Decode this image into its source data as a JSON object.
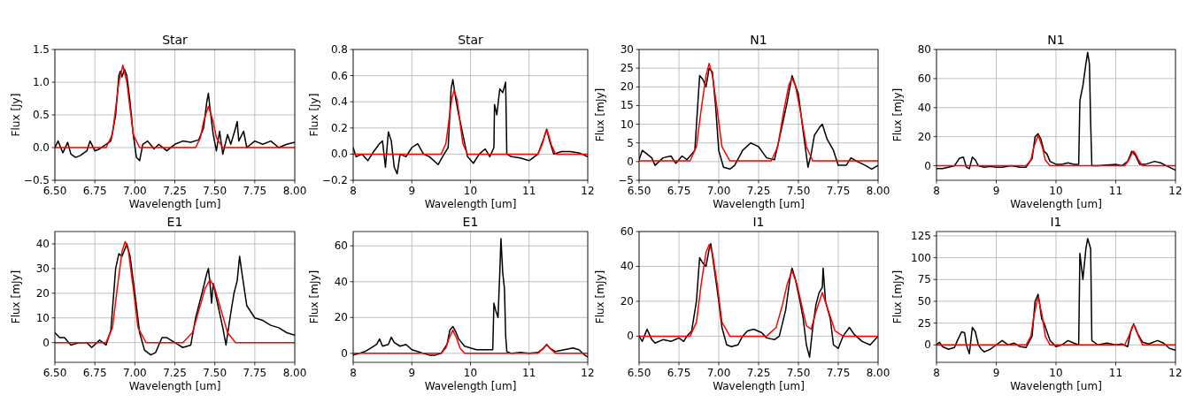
{
  "chart_data": [
    {
      "type": "line",
      "title": "Star",
      "xlabel": "Wavelength [um]",
      "ylabel": "Flux [Jy]",
      "grid": true,
      "xlim": [
        6.5,
        8
      ],
      "xticks": [
        {
          "value": 6.5,
          "label": "6.50"
        },
        {
          "value": 6.75,
          "label": "6.75"
        },
        {
          "value": 7,
          "label": "7.00"
        },
        {
          "value": 7.25,
          "label": "7.25"
        },
        {
          "value": 7.5,
          "label": "7.50"
        },
        {
          "value": 7.75,
          "label": "7.75"
        },
        {
          "value": 8,
          "label": "8.00"
        }
      ],
      "ylim": [
        -0.5,
        1.5
      ],
      "yticks": [
        {
          "value": -0.5,
          "label": "−0.5"
        },
        {
          "value": 0,
          "label": "0.0"
        },
        {
          "value": 0.5,
          "label": "0.5"
        },
        {
          "value": 1,
          "label": "1.0"
        },
        {
          "value": 1.5,
          "label": "1.5"
        }
      ],
      "series": [
        {
          "color": "#000000",
          "x": [
            6.5,
            6.52,
            6.55,
            6.58,
            6.6,
            6.63,
            6.66,
            6.7,
            6.72,
            6.75,
            6.78,
            6.82,
            6.85,
            6.88,
            6.9,
            6.91,
            6.92,
            6.935,
            6.95,
            6.97,
            6.99,
            7.01,
            7.03,
            7.05,
            7.08,
            7.12,
            7.15,
            7.2,
            7.25,
            7.3,
            7.35,
            7.4,
            7.43,
            7.45,
            7.46,
            7.47,
            7.49,
            7.51,
            7.53,
            7.55,
            7.58,
            7.6,
            7.63,
            7.64,
            7.65,
            7.68,
            7.7,
            7.75,
            7.8,
            7.85,
            7.9,
            7.95,
            8.0
          ],
          "values": [
            0.0,
            0.1,
            -0.08,
            0.08,
            -0.1,
            -0.15,
            -0.12,
            -0.05,
            0.1,
            -0.05,
            -0.02,
            0.05,
            0.1,
            0.5,
            1.1,
            1.17,
            1.08,
            1.2,
            1.1,
            0.7,
            0.2,
            -0.15,
            -0.2,
            0.05,
            0.1,
            -0.02,
            0.05,
            -0.05,
            0.05,
            0.1,
            0.08,
            0.12,
            0.3,
            0.7,
            0.83,
            0.6,
            0.2,
            -0.05,
            0.25,
            -0.1,
            0.2,
            0.05,
            0.3,
            0.4,
            0.1,
            0.25,
            0.0,
            0.1,
            0.05,
            0.1,
            0.0,
            0.05,
            0.08
          ]
        },
        {
          "color": "#ff0000",
          "x": [
            6.5,
            6.82,
            6.86,
            6.88,
            6.9,
            6.925,
            6.95,
            6.97,
            6.99,
            7.03,
            7.38,
            7.41,
            7.43,
            7.46,
            7.49,
            7.51,
            7.55,
            8.0
          ],
          "values": [
            0,
            0,
            0.2,
            0.6,
            1.0,
            1.26,
            1.0,
            0.6,
            0.2,
            0,
            0,
            0.15,
            0.4,
            0.63,
            0.4,
            0.15,
            0,
            0
          ]
        }
      ]
    },
    {
      "type": "line",
      "title": "Star",
      "xlabel": "Wavelength [um]",
      "ylabel": "Flux [Jy]",
      "grid": true,
      "xlim": [
        8,
        12
      ],
      "xticks": [
        8,
        9,
        10,
        11,
        12
      ],
      "ylim": [
        -0.2,
        0.8
      ],
      "yticks": [
        {
          "value": -0.2,
          "label": "−0.2"
        },
        {
          "value": 0,
          "label": "0.0"
        },
        {
          "value": 0.2,
          "label": "0.2"
        },
        {
          "value": 0.4,
          "label": "0.4"
        },
        {
          "value": 0.6,
          "label": "0.6"
        },
        {
          "value": 0.8,
          "label": "0.8"
        }
      ],
      "series": [
        {
          "color": "#000000",
          "x": [
            8.0,
            8.05,
            8.15,
            8.25,
            8.35,
            8.45,
            8.5,
            8.55,
            8.6,
            8.65,
            8.7,
            8.75,
            8.8,
            8.9,
            9.0,
            9.1,
            9.2,
            9.3,
            9.45,
            9.55,
            9.62,
            9.67,
            9.7,
            9.75,
            9.8,
            9.87,
            9.95,
            10.05,
            10.15,
            10.25,
            10.33,
            10.4,
            10.41,
            10.45,
            10.5,
            10.55,
            10.6,
            10.62,
            10.7,
            10.85,
            11.0,
            11.15,
            11.25,
            11.3,
            11.35,
            11.42,
            11.55,
            11.7,
            11.85,
            12.0
          ],
          "values": [
            0.05,
            -0.02,
            0.0,
            -0.05,
            0.02,
            0.08,
            0.1,
            -0.1,
            0.17,
            0.1,
            -0.1,
            -0.15,
            0.0,
            -0.02,
            0.05,
            0.08,
            0.0,
            -0.02,
            -0.08,
            0.0,
            0.05,
            0.5,
            0.57,
            0.42,
            0.3,
            0.15,
            -0.02,
            -0.07,
            0.0,
            0.04,
            -0.02,
            0.05,
            0.38,
            0.3,
            0.5,
            0.47,
            0.55,
            0.0,
            -0.02,
            -0.03,
            -0.05,
            0.0,
            0.12,
            0.19,
            0.1,
            0.0,
            0.02,
            0.02,
            0.01,
            -0.02
          ]
        },
        {
          "color": "#ff0000",
          "x": [
            8,
            9.5,
            9.58,
            9.63,
            9.68,
            9.72,
            9.77,
            9.82,
            9.87,
            9.95,
            11.15,
            11.22,
            11.27,
            11.3,
            11.33,
            11.38,
            11.45,
            12
          ],
          "values": [
            0,
            0,
            0.08,
            0.25,
            0.42,
            0.49,
            0.42,
            0.25,
            0.08,
            0,
            0,
            0.07,
            0.15,
            0.19,
            0.15,
            0.07,
            0,
            0
          ]
        }
      ]
    },
    {
      "type": "line",
      "title": "N1",
      "xlabel": "Wavelength [um]",
      "ylabel": "Flux [mJy]",
      "grid": true,
      "xlim": [
        6.5,
        8
      ],
      "xticks": [
        {
          "value": 6.5,
          "label": "6.50"
        },
        {
          "value": 6.75,
          "label": "6.75"
        },
        {
          "value": 7,
          "label": "7.00"
        },
        {
          "value": 7.25,
          "label": "7.25"
        },
        {
          "value": 7.5,
          "label": "7.50"
        },
        {
          "value": 7.75,
          "label": "7.75"
        },
        {
          "value": 8,
          "label": "8.00"
        }
      ],
      "ylim": [
        -5,
        30
      ],
      "yticks": [
        {
          "value": -5,
          "label": "−5"
        },
        0,
        5,
        10,
        15,
        20,
        25,
        30
      ],
      "series": [
        {
          "color": "#000000",
          "x": [
            6.5,
            6.52,
            6.55,
            6.58,
            6.6,
            6.65,
            6.7,
            6.73,
            6.77,
            6.8,
            6.85,
            6.88,
            6.9,
            6.92,
            6.94,
            6.96,
            6.98,
            7.0,
            7.03,
            7.07,
            7.1,
            7.15,
            7.2,
            7.25,
            7.3,
            7.35,
            7.4,
            7.43,
            7.46,
            7.5,
            7.53,
            7.56,
            7.58,
            7.6,
            7.63,
            7.65,
            7.68,
            7.72,
            7.75,
            7.8,
            7.83,
            7.87,
            7.92,
            7.96,
            8.0
          ],
          "values": [
            0.5,
            3,
            2,
            1,
            -1,
            1,
            1.5,
            -0.5,
            1.5,
            0.5,
            3,
            23,
            22,
            20,
            25,
            24,
            15,
            3,
            -1.5,
            -2,
            -1,
            3,
            5,
            4,
            1,
            0.5,
            10,
            16,
            23,
            18,
            8,
            -1.5,
            2,
            7,
            9,
            10,
            6,
            3,
            -1,
            -1,
            1,
            0,
            -1,
            -2,
            -1
          ]
        },
        {
          "color": "#ff0000",
          "x": [
            6.5,
            6.82,
            6.86,
            6.89,
            6.92,
            6.94,
            6.96,
            6.99,
            7.02,
            7.07,
            7.33,
            7.37,
            7.41,
            7.44,
            7.46,
            7.48,
            7.51,
            7.55,
            7.59,
            8.0
          ],
          "values": [
            0.2,
            0.2,
            4,
            14,
            23,
            26.3,
            23,
            14,
            4,
            0.2,
            0.2,
            4,
            14,
            20.5,
            22.3,
            20.5,
            14,
            4,
            0.2,
            0.2
          ]
        }
      ]
    },
    {
      "type": "line",
      "title": "N1",
      "xlabel": "Wavelength [um]",
      "ylabel": "Flux [mJy]",
      "grid": true,
      "xlim": [
        8,
        12
      ],
      "xticks": [
        8,
        9,
        10,
        11,
        12
      ],
      "ylim": [
        -10,
        80
      ],
      "yticks": [
        0,
        20,
        40,
        60,
        80
      ],
      "series": [
        {
          "color": "#000000",
          "x": [
            8.0,
            8.1,
            8.2,
            8.3,
            8.38,
            8.45,
            8.5,
            8.55,
            8.6,
            8.65,
            8.7,
            8.8,
            8.9,
            9.0,
            9.1,
            9.25,
            9.4,
            9.5,
            9.6,
            9.65,
            9.7,
            9.75,
            9.8,
            9.85,
            9.9,
            10.0,
            10.1,
            10.2,
            10.3,
            10.38,
            10.4,
            10.45,
            10.5,
            10.53,
            10.56,
            10.58,
            10.6,
            10.7,
            10.85,
            11.0,
            11.1,
            11.2,
            11.27,
            11.33,
            11.4,
            11.5,
            11.65,
            11.75,
            11.85,
            12.0
          ],
          "values": [
            -2,
            -2,
            -1,
            0,
            5,
            6,
            -1,
            -2,
            6,
            4,
            0,
            -1,
            -0.5,
            -1,
            -1,
            0,
            -1,
            -1,
            5,
            20,
            22,
            18,
            10,
            8,
            3,
            1,
            1,
            2,
            1,
            1,
            45,
            55,
            70,
            78,
            70,
            30,
            0,
            0,
            0.5,
            1,
            0,
            3,
            10,
            7,
            1,
            1,
            3,
            2,
            0,
            -3
          ]
        },
        {
          "color": "#ff0000",
          "x": [
            8,
            9.5,
            9.58,
            9.63,
            9.7,
            9.77,
            9.82,
            9.9,
            11.15,
            11.22,
            11.27,
            11.3,
            11.33,
            11.38,
            11.45,
            12
          ],
          "values": [
            0,
            0,
            4,
            13,
            21,
            13,
            4,
            0,
            0,
            4,
            8.5,
            10,
            8.5,
            4,
            0,
            0
          ]
        }
      ]
    },
    {
      "type": "line",
      "title": "E1",
      "xlabel": "Wavelength [um]",
      "ylabel": "Flux [mJy]",
      "grid": true,
      "xlim": [
        6.5,
        8
      ],
      "xticks": [
        {
          "value": 6.5,
          "label": "6.50"
        },
        {
          "value": 6.75,
          "label": "6.75"
        },
        {
          "value": 7,
          "label": "7.00"
        },
        {
          "value": 7.25,
          "label": "7.25"
        },
        {
          "value": 7.5,
          "label": "7.50"
        },
        {
          "value": 7.75,
          "label": "7.75"
        },
        {
          "value": 8,
          "label": "8.00"
        }
      ],
      "ylim": [
        -8,
        45
      ],
      "yticks": [
        0,
        10,
        20,
        30,
        40
      ],
      "series": [
        {
          "color": "#000000",
          "x": [
            6.5,
            6.53,
            6.56,
            6.6,
            6.65,
            6.7,
            6.73,
            6.78,
            6.82,
            6.85,
            6.88,
            6.9,
            6.92,
            6.95,
            6.97,
            7.0,
            7.03,
            7.06,
            7.1,
            7.13,
            7.17,
            7.2,
            7.25,
            7.3,
            7.35,
            7.38,
            7.42,
            7.45,
            7.46,
            7.47,
            7.48,
            7.49,
            7.52,
            7.55,
            7.57,
            7.6,
            7.62,
            7.64,
            7.655,
            7.67,
            7.7,
            7.75,
            7.8,
            7.85,
            7.9,
            7.95,
            8.0
          ],
          "values": [
            4,
            2,
            2,
            -1,
            0,
            0,
            -2,
            1,
            -1,
            5,
            30,
            36,
            35,
            40,
            35,
            20,
            4,
            -3,
            -5,
            -4,
            2,
            2,
            0,
            -2,
            -1,
            10,
            20,
            28,
            30,
            24,
            16,
            24,
            15,
            6,
            -1,
            12,
            20,
            25,
            35,
            28,
            15,
            10,
            9,
            7,
            6,
            4,
            3
          ]
        },
        {
          "color": "#ff0000",
          "x": [
            6.5,
            6.82,
            6.86,
            6.89,
            6.92,
            6.94,
            6.96,
            6.99,
            7.02,
            7.07,
            7.3,
            7.36,
            7.4,
            7.44,
            7.47,
            7.5,
            7.54,
            7.58,
            7.63,
            8.0
          ],
          "values": [
            0,
            0,
            6,
            22,
            37,
            41,
            37,
            22,
            6,
            0,
            0,
            4,
            13,
            22,
            25.5,
            22,
            13,
            4,
            0,
            0
          ]
        }
      ]
    },
    {
      "type": "line",
      "title": "E1",
      "xlabel": "Wavelength [um]",
      "ylabel": "Flux [mJy]",
      "grid": true,
      "xlim": [
        8,
        12
      ],
      "xticks": [
        8,
        9,
        10,
        11,
        12
      ],
      "ylim": [
        -5,
        68
      ],
      "yticks": [
        0,
        20,
        40,
        60
      ],
      "series": [
        {
          "color": "#000000",
          "x": [
            8.0,
            8.1,
            8.2,
            8.3,
            8.4,
            8.45,
            8.5,
            8.6,
            8.65,
            8.7,
            8.8,
            8.9,
            9.0,
            9.1,
            9.2,
            9.3,
            9.4,
            9.5,
            9.6,
            9.65,
            9.7,
            9.75,
            9.8,
            9.9,
            10.0,
            10.1,
            10.2,
            10.3,
            10.38,
            10.4,
            10.43,
            10.47,
            10.5,
            10.52,
            10.55,
            10.58,
            10.6,
            10.62,
            10.7,
            10.85,
            11.0,
            11.15,
            11.25,
            11.3,
            11.35,
            11.45,
            11.6,
            11.75,
            11.85,
            11.95,
            12.0
          ],
          "values": [
            -1,
            0,
            1,
            3,
            5,
            8,
            4,
            5,
            9,
            6,
            4,
            5,
            2,
            1,
            0,
            -1,
            -1,
            0,
            5,
            13,
            15,
            12,
            8,
            4,
            3,
            2,
            2,
            2,
            2,
            28,
            24,
            20,
            45,
            64,
            45,
            36,
            10,
            1,
            0,
            0.5,
            0,
            0.5,
            3,
            5,
            3,
            1,
            2,
            3,
            2,
            -1,
            -2
          ]
        },
        {
          "color": "#ff0000",
          "x": [
            8,
            9.5,
            9.58,
            9.63,
            9.7,
            9.77,
            9.82,
            9.9,
            11.15,
            11.22,
            11.27,
            11.3,
            11.33,
            11.38,
            11.45,
            12
          ],
          "values": [
            0,
            0,
            3,
            8,
            13,
            8,
            3,
            0,
            0,
            2,
            4,
            4.5,
            4,
            2,
            0,
            0
          ]
        }
      ]
    },
    {
      "type": "line",
      "title": "I1",
      "xlabel": "Wavelength [um]",
      "ylabel": "Flux [mJy]",
      "grid": true,
      "xlim": [
        6.5,
        8
      ],
      "xticks": [
        {
          "value": 6.5,
          "label": "6.50"
        },
        {
          "value": 6.75,
          "label": "6.75"
        },
        {
          "value": 7,
          "label": "7.00"
        },
        {
          "value": 7.25,
          "label": "7.25"
        },
        {
          "value": 7.5,
          "label": "7.50"
        },
        {
          "value": 7.75,
          "label": "7.75"
        },
        {
          "value": 8,
          "label": "8.00"
        }
      ],
      "ylim": [
        -15,
        60
      ],
      "yticks": [
        0,
        20,
        40,
        60
      ],
      "series": [
        {
          "color": "#000000",
          "x": [
            6.5,
            6.52,
            6.55,
            6.58,
            6.6,
            6.65,
            6.7,
            6.75,
            6.78,
            6.8,
            6.83,
            6.86,
            6.88,
            6.9,
            6.92,
            6.94,
            6.95,
            6.97,
            7.0,
            7.02,
            7.05,
            7.08,
            7.12,
            7.15,
            7.18,
            7.22,
            7.27,
            7.3,
            7.35,
            7.38,
            7.42,
            7.45,
            7.46,
            7.48,
            7.51,
            7.53,
            7.55,
            7.57,
            7.59,
            7.61,
            7.63,
            7.65,
            7.655,
            7.67,
            7.7,
            7.72,
            7.75,
            7.78,
            7.82,
            7.85,
            7.9,
            7.95,
            8.0
          ],
          "values": [
            0,
            -3,
            4,
            -2,
            -4,
            -2,
            -3,
            -1,
            -3,
            0,
            3,
            20,
            45,
            42,
            40,
            50,
            53,
            40,
            20,
            5,
            -5,
            -6,
            -5,
            0,
            3,
            4,
            2,
            -1,
            -2,
            0,
            15,
            35,
            39,
            33,
            20,
            10,
            -5,
            -12,
            5,
            18,
            25,
            28,
            39,
            20,
            10,
            -5,
            -7,
            0,
            5,
            1,
            -3,
            -5,
            0
          ]
        },
        {
          "color": "#ff0000",
          "x": [
            6.5,
            6.82,
            6.86,
            6.89,
            6.92,
            6.94,
            6.96,
            6.99,
            7.02,
            7.07,
            7.3,
            7.36,
            7.4,
            7.43,
            7.46,
            7.49,
            7.52,
            7.55,
            7.58,
            7.61,
            7.65,
            7.69,
            7.73,
            7.78,
            8.0
          ],
          "values": [
            0,
            0,
            8,
            30,
            48,
            52.5,
            48,
            30,
            8,
            0,
            0,
            5,
            18,
            30,
            37.5,
            30,
            18,
            6,
            4,
            14,
            25,
            14,
            3,
            0,
            0
          ]
        }
      ]
    },
    {
      "type": "line",
      "title": "I1",
      "xlabel": "Wavelength [um]",
      "ylabel": "Flux [mJy]",
      "grid": true,
      "xlim": [
        8,
        12
      ],
      "xticks": [
        8,
        9,
        10,
        11,
        12
      ],
      "ylim": [
        -20,
        130
      ],
      "yticks": [
        0,
        25,
        50,
        75,
        100,
        125
      ],
      "series": [
        {
          "color": "#000000",
          "x": [
            8.0,
            8.05,
            8.1,
            8.2,
            8.3,
            8.35,
            8.42,
            8.47,
            8.5,
            8.55,
            8.6,
            8.65,
            8.7,
            8.75,
            8.8,
            8.9,
            9.0,
            9.1,
            9.2,
            9.3,
            9.4,
            9.5,
            9.6,
            9.65,
            9.7,
            9.72,
            9.76,
            9.8,
            9.85,
            9.9,
            10.0,
            10.1,
            10.2,
            10.3,
            10.38,
            10.4,
            10.45,
            10.5,
            10.53,
            10.56,
            10.58,
            10.6,
            10.7,
            10.85,
            11.0,
            11.1,
            11.2,
            11.25,
            11.3,
            11.35,
            11.45,
            11.55,
            11.7,
            11.8,
            11.9,
            12.0
          ],
          "values": [
            0,
            3,
            -2,
            -5,
            -3,
            5,
            15,
            14,
            0,
            -10,
            20,
            15,
            0,
            -5,
            -8,
            -5,
            0,
            5,
            0,
            2,
            -2,
            -3,
            10,
            50,
            58,
            50,
            30,
            25,
            15,
            5,
            -2,
            0,
            5,
            2,
            0,
            105,
            75,
            110,
            122,
            115,
            110,
            5,
            0,
            2,
            0,
            1,
            -2,
            15,
            24,
            15,
            3,
            1,
            5,
            2,
            -4,
            -6
          ]
        },
        {
          "color": "#ff0000",
          "x": [
            8,
            9.5,
            9.58,
            9.63,
            9.7,
            9.77,
            9.82,
            9.9,
            11.15,
            11.22,
            11.27,
            11.3,
            11.33,
            11.38,
            11.45,
            12
          ],
          "values": [
            0,
            0,
            10,
            33,
            55,
            33,
            10,
            0,
            0,
            10,
            20,
            23,
            20,
            10,
            0,
            0
          ]
        }
      ]
    }
  ]
}
